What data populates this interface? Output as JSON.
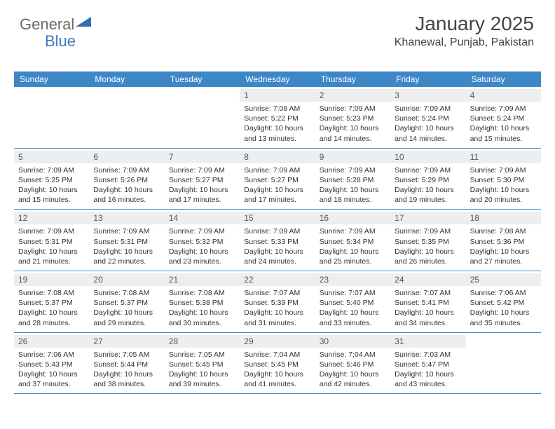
{
  "logo": {
    "text1": "General",
    "text2": "Blue",
    "triangle_color": "#2f6fb0"
  },
  "header": {
    "month_title": "January 2025",
    "location": "Khanewal, Punjab, Pakistan",
    "title_color": "#444444",
    "title_fontsize": 28,
    "location_fontsize": 16
  },
  "calendar": {
    "header_bg": "#3d87c7",
    "header_text_color": "#ffffff",
    "daynum_bg": "#eceeef",
    "row_border_color": "#3d87c7",
    "text_color": "#333333",
    "cell_fontsize": 10.5,
    "columns": [
      "Sunday",
      "Monday",
      "Tuesday",
      "Wednesday",
      "Thursday",
      "Friday",
      "Saturday"
    ],
    "weeks": [
      [
        {
          "empty": true
        },
        {
          "empty": true
        },
        {
          "empty": true
        },
        {
          "day": "1",
          "sunrise": "7:08 AM",
          "sunset": "5:22 PM",
          "daylight": "10 hours and 13 minutes."
        },
        {
          "day": "2",
          "sunrise": "7:09 AM",
          "sunset": "5:23 PM",
          "daylight": "10 hours and 14 minutes."
        },
        {
          "day": "3",
          "sunrise": "7:09 AM",
          "sunset": "5:24 PM",
          "daylight": "10 hours and 14 minutes."
        },
        {
          "day": "4",
          "sunrise": "7:09 AM",
          "sunset": "5:24 PM",
          "daylight": "10 hours and 15 minutes."
        }
      ],
      [
        {
          "day": "5",
          "sunrise": "7:09 AM",
          "sunset": "5:25 PM",
          "daylight": "10 hours and 15 minutes."
        },
        {
          "day": "6",
          "sunrise": "7:09 AM",
          "sunset": "5:26 PM",
          "daylight": "10 hours and 16 minutes."
        },
        {
          "day": "7",
          "sunrise": "7:09 AM",
          "sunset": "5:27 PM",
          "daylight": "10 hours and 17 minutes."
        },
        {
          "day": "8",
          "sunrise": "7:09 AM",
          "sunset": "5:27 PM",
          "daylight": "10 hours and 17 minutes."
        },
        {
          "day": "9",
          "sunrise": "7:09 AM",
          "sunset": "5:28 PM",
          "daylight": "10 hours and 18 minutes."
        },
        {
          "day": "10",
          "sunrise": "7:09 AM",
          "sunset": "5:29 PM",
          "daylight": "10 hours and 19 minutes."
        },
        {
          "day": "11",
          "sunrise": "7:09 AM",
          "sunset": "5:30 PM",
          "daylight": "10 hours and 20 minutes."
        }
      ],
      [
        {
          "day": "12",
          "sunrise": "7:09 AM",
          "sunset": "5:31 PM",
          "daylight": "10 hours and 21 minutes."
        },
        {
          "day": "13",
          "sunrise": "7:09 AM",
          "sunset": "5:31 PM",
          "daylight": "10 hours and 22 minutes."
        },
        {
          "day": "14",
          "sunrise": "7:09 AM",
          "sunset": "5:32 PM",
          "daylight": "10 hours and 23 minutes."
        },
        {
          "day": "15",
          "sunrise": "7:09 AM",
          "sunset": "5:33 PM",
          "daylight": "10 hours and 24 minutes."
        },
        {
          "day": "16",
          "sunrise": "7:09 AM",
          "sunset": "5:34 PM",
          "daylight": "10 hours and 25 minutes."
        },
        {
          "day": "17",
          "sunrise": "7:09 AM",
          "sunset": "5:35 PM",
          "daylight": "10 hours and 26 minutes."
        },
        {
          "day": "18",
          "sunrise": "7:08 AM",
          "sunset": "5:36 PM",
          "daylight": "10 hours and 27 minutes."
        }
      ],
      [
        {
          "day": "19",
          "sunrise": "7:08 AM",
          "sunset": "5:37 PM",
          "daylight": "10 hours and 28 minutes."
        },
        {
          "day": "20",
          "sunrise": "7:08 AM",
          "sunset": "5:37 PM",
          "daylight": "10 hours and 29 minutes."
        },
        {
          "day": "21",
          "sunrise": "7:08 AM",
          "sunset": "5:38 PM",
          "daylight": "10 hours and 30 minutes."
        },
        {
          "day": "22",
          "sunrise": "7:07 AM",
          "sunset": "5:39 PM",
          "daylight": "10 hours and 31 minutes."
        },
        {
          "day": "23",
          "sunrise": "7:07 AM",
          "sunset": "5:40 PM",
          "daylight": "10 hours and 33 minutes."
        },
        {
          "day": "24",
          "sunrise": "7:07 AM",
          "sunset": "5:41 PM",
          "daylight": "10 hours and 34 minutes."
        },
        {
          "day": "25",
          "sunrise": "7:06 AM",
          "sunset": "5:42 PM",
          "daylight": "10 hours and 35 minutes."
        }
      ],
      [
        {
          "day": "26",
          "sunrise": "7:06 AM",
          "sunset": "5:43 PM",
          "daylight": "10 hours and 37 minutes."
        },
        {
          "day": "27",
          "sunrise": "7:05 AM",
          "sunset": "5:44 PM",
          "daylight": "10 hours and 38 minutes."
        },
        {
          "day": "28",
          "sunrise": "7:05 AM",
          "sunset": "5:45 PM",
          "daylight": "10 hours and 39 minutes."
        },
        {
          "day": "29",
          "sunrise": "7:04 AM",
          "sunset": "5:45 PM",
          "daylight": "10 hours and 41 minutes."
        },
        {
          "day": "30",
          "sunrise": "7:04 AM",
          "sunset": "5:46 PM",
          "daylight": "10 hours and 42 minutes."
        },
        {
          "day": "31",
          "sunrise": "7:03 AM",
          "sunset": "5:47 PM",
          "daylight": "10 hours and 43 minutes."
        },
        {
          "empty": true
        }
      ]
    ]
  },
  "labels": {
    "sunrise_prefix": "Sunrise: ",
    "sunset_prefix": "Sunset: ",
    "daylight_prefix": "Daylight: "
  }
}
